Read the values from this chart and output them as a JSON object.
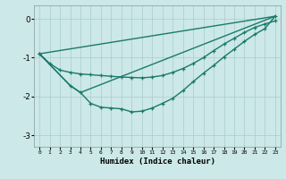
{
  "xlabel": "Humidex (Indice chaleur)",
  "bg_color": "#cce8e8",
  "grid_color": "#aacccc",
  "line_color": "#1a7a6a",
  "xlim": [
    -0.5,
    23.5
  ],
  "ylim": [
    -3.3,
    0.35
  ],
  "yticks": [
    0,
    -1,
    -2,
    -3
  ],
  "xticks": [
    0,
    1,
    2,
    3,
    4,
    5,
    6,
    7,
    8,
    9,
    10,
    11,
    12,
    13,
    14,
    15,
    16,
    17,
    18,
    19,
    20,
    21,
    22,
    23
  ],
  "line1_x": [
    0,
    1,
    2,
    3,
    4,
    5,
    6,
    7,
    8,
    9,
    10,
    11,
    12,
    13,
    14,
    15,
    16,
    17,
    18,
    19,
    20,
    21,
    22,
    23
  ],
  "line1_y": [
    -0.9,
    -1.15,
    -1.32,
    -1.38,
    -1.42,
    -1.44,
    -1.46,
    -1.48,
    -1.5,
    -1.51,
    -1.52,
    -1.5,
    -1.46,
    -1.38,
    -1.28,
    -1.15,
    -1.0,
    -0.82,
    -0.65,
    -0.5,
    -0.35,
    -0.22,
    -0.13,
    -0.05
  ],
  "line2_x": [
    0,
    3,
    4,
    5,
    6,
    7,
    8,
    9,
    10,
    11,
    12,
    13,
    14,
    15,
    16,
    17,
    18,
    19,
    20,
    21,
    22,
    23
  ],
  "line2_y": [
    -0.9,
    -1.72,
    -1.9,
    -2.18,
    -2.28,
    -2.3,
    -2.32,
    -2.4,
    -2.38,
    -2.3,
    -2.18,
    -2.05,
    -1.85,
    -1.62,
    -1.4,
    -1.2,
    -0.98,
    -0.78,
    -0.58,
    -0.4,
    -0.25,
    0.07
  ],
  "line3_x": [
    0,
    23
  ],
  "line3_y": [
    -0.9,
    0.07
  ],
  "line4_x": [
    0,
    3,
    4,
    23
  ],
  "line4_y": [
    -0.9,
    -1.72,
    -1.9,
    0.07
  ]
}
